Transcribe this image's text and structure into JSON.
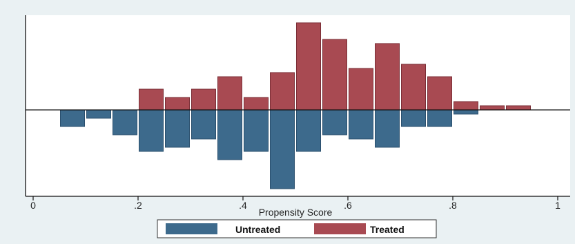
{
  "chart_data": {
    "type": "bar",
    "title": "",
    "xlabel": "Propensity Score",
    "ylabel": "",
    "xlim": [
      0,
      1
    ],
    "ylim": [
      -1,
      1
    ],
    "x_ticks": [
      "0",
      ".2",
      ".4",
      ".6",
      ".8",
      "1"
    ],
    "x_tick_values": [
      0,
      0.2,
      0.4,
      0.6,
      0.8,
      1
    ],
    "grid": false,
    "legend_position": "bottom",
    "colors": {
      "Untreated": "#3d6a8c",
      "Treated": "#a84a52",
      "Untreated_edge": "#2a4f6d",
      "Treated_edge": "#7a2e36",
      "plot_background": "#ffffff",
      "page_background": "#eaf1f3"
    },
    "bin_width": 0.05,
    "bin_starts": [
      0.05,
      0.1,
      0.15,
      0.2,
      0.25,
      0.3,
      0.35,
      0.4,
      0.45,
      0.5,
      0.55,
      0.6,
      0.65,
      0.7,
      0.75,
      0.8,
      0.85,
      0.9
    ],
    "series": [
      {
        "name": "Untreated",
        "direction": "down",
        "values": [
          0.2,
          0.1,
          0.3,
          0.5,
          0.45,
          0.35,
          0.6,
          0.5,
          0.95,
          0.5,
          0.3,
          0.35,
          0.45,
          0.2,
          0.2,
          0.05,
          0,
          0
        ]
      },
      {
        "name": "Treated",
        "direction": "up",
        "values": [
          0,
          0,
          0,
          0.25,
          0.15,
          0.25,
          0.4,
          0.15,
          0.45,
          1.05,
          0.85,
          0.5,
          0.8,
          0.55,
          0.4,
          0.1,
          0.05,
          0.05
        ]
      }
    ]
  }
}
